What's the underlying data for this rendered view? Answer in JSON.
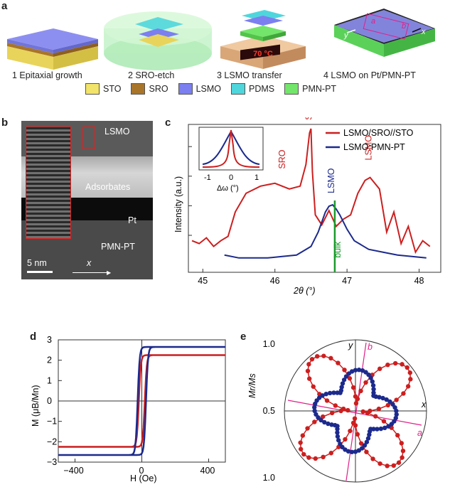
{
  "panels": {
    "a": "a",
    "b": "b",
    "c": "c",
    "d": "d",
    "e": "e"
  },
  "panel_a": {
    "steps": [
      "1 Epitaxial growth",
      "2 SRO-etch",
      "3 LSMO transfer",
      "4 LSMO on Pt/PMN-PT"
    ],
    "heater_display": "70 °C",
    "axis_letters": {
      "y": "y",
      "x": "x",
      "a": "a",
      "b": "b"
    },
    "legend": [
      {
        "label": "STO",
        "color": "#f2e36a"
      },
      {
        "label": "SRO",
        "color": "#a8752a"
      },
      {
        "label": "LSMO",
        "color": "#7b7ff0"
      },
      {
        "label": "PDMS",
        "color": "#4fd6dc"
      },
      {
        "label": "PMN-PT",
        "color": "#72e56a"
      }
    ]
  },
  "panel_b": {
    "labels": {
      "lsmo": "LSMO",
      "adsorbates": "Adsorbates",
      "pt": "Pt",
      "pmnpt": "PMN-PT",
      "scale": "5 nm",
      "x": "x"
    }
  },
  "chart_data": [
    {
      "id": "c",
      "type": "line",
      "xlabel": "2θ (°)",
      "ylabel": "Intensity (a.u.)",
      "xlim": [
        44.8,
        48.3
      ],
      "xticks": [
        45,
        46,
        47,
        48
      ],
      "y_scale": "log",
      "series": [
        {
          "name": "LSMO/SRO//STO",
          "color": "#cc1f1f",
          "x": [
            44.85,
            44.95,
            45.05,
            45.15,
            45.25,
            45.35,
            45.45,
            45.6,
            45.8,
            46.0,
            46.2,
            46.35,
            46.43,
            46.48,
            46.5,
            46.52,
            46.56,
            46.65,
            46.75,
            46.85,
            46.95,
            47.05,
            47.15,
            47.25,
            47.32,
            47.45,
            47.55,
            47.65,
            47.75,
            47.85,
            47.95,
            48.05,
            48.15
          ],
          "y": [
            0.22,
            0.2,
            0.24,
            0.18,
            0.22,
            0.25,
            0.42,
            0.55,
            0.6,
            0.62,
            0.58,
            0.6,
            0.75,
            0.97,
            1.0,
            0.7,
            0.4,
            0.33,
            0.43,
            0.32,
            0.37,
            0.4,
            0.55,
            0.64,
            0.66,
            0.58,
            0.28,
            0.42,
            0.2,
            0.32,
            0.14,
            0.22,
            0.18
          ]
        },
        {
          "name": "LSMO:PMN-PT",
          "color": "#1c2a8c",
          "x": [
            45.3,
            45.5,
            45.7,
            45.9,
            46.1,
            46.3,
            46.5,
            46.6,
            46.7,
            46.75,
            46.8,
            46.85,
            46.9,
            47.0,
            47.1,
            47.3,
            47.5,
            47.7,
            47.9,
            48.1
          ],
          "y": [
            0.12,
            0.1,
            0.1,
            0.1,
            0.11,
            0.12,
            0.18,
            0.28,
            0.42,
            0.46,
            0.47,
            0.44,
            0.4,
            0.3,
            0.22,
            0.16,
            0.14,
            0.12,
            0.11,
            0.1
          ]
        }
      ],
      "annotations": [
        {
          "text": "SRO",
          "x": 46.1,
          "color": "#cc1f1f"
        },
        {
          "text": "STO",
          "x": 46.47,
          "color": "#cc1f1f"
        },
        {
          "text": "LSMO",
          "x": 46.78,
          "color": "#1c2a8c"
        },
        {
          "text": "LSMO",
          "x": 47.3,
          "color": "#cc1f1f"
        },
        {
          "text": "bulk",
          "x": 46.87,
          "color": "#1a9a2a"
        }
      ],
      "bulk_line_x": 46.83,
      "inset": {
        "xlabel": "Δω (°)",
        "ylabel": "",
        "xticks": [
          -1,
          0,
          1
        ],
        "xlim": [
          -1.2,
          1.2
        ]
      }
    },
    {
      "id": "d",
      "type": "line",
      "xlabel": "H (Oe)",
      "ylabel": "M (μB/Mn)",
      "xlim": [
        -500,
        500
      ],
      "ylim": [
        -3,
        3
      ],
      "xticks": [
        -400,
        0,
        400
      ],
      "yticks": [
        -3,
        -2,
        -1,
        0,
        1,
        2,
        3
      ],
      "series": [
        {
          "name": "red loop",
          "color": "#cc1f1f",
          "saturation": 2.25,
          "coercive_field": 18
        },
        {
          "name": "blue loop",
          "color": "#1c2a8c",
          "saturation": 2.65,
          "coercive_field": 25
        }
      ]
    },
    {
      "id": "e",
      "type": "scatter",
      "polar": true,
      "ylabel": "Mr/Ms",
      "radial_labels": [
        "1.0",
        "0.5",
        "1.0"
      ],
      "axis_letters": {
        "x": "x",
        "y": "y",
        "a": "a",
        "b": "b"
      },
      "series": [
        {
          "name": "red four-lobe",
          "color": "#cc1f1f",
          "r_max": 0.95,
          "r_min": 0.1,
          "shape": "four-lobe"
        },
        {
          "name": "blue four-lobe",
          "color": "#1c2a8c",
          "r_max": 0.58,
          "r_min": 0.33,
          "shape": "four-lobe-rotated"
        }
      ]
    }
  ]
}
